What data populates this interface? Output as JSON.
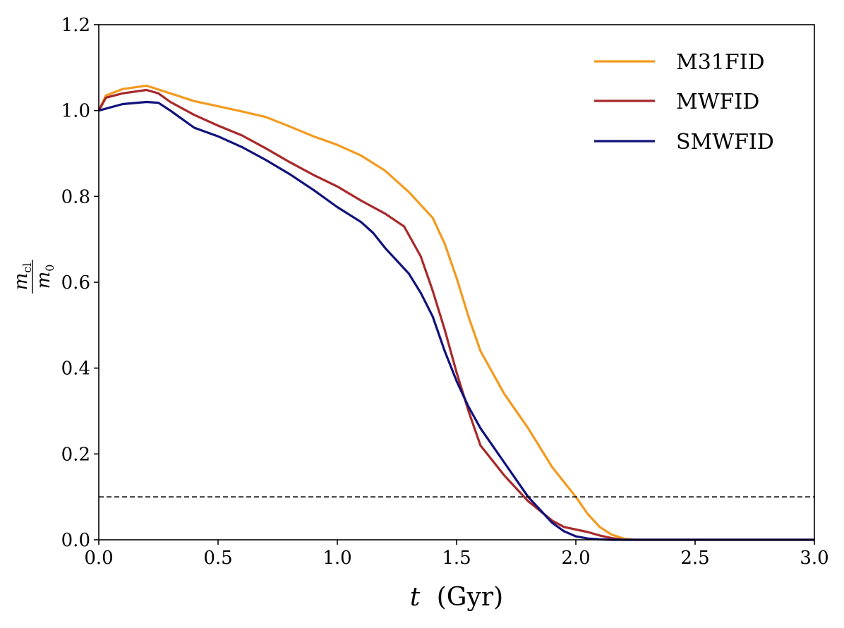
{
  "chart_data": {
    "type": "line",
    "title": "",
    "xlabel_var": "t",
    "xlabel_unit": "(Gyr)",
    "ylabel_num_main": "m",
    "ylabel_num_sub": "cl",
    "ylabel_den_main": "m",
    "ylabel_den_sub": "0",
    "xlim": [
      0.0,
      3.0
    ],
    "ylim": [
      0.0,
      1.2
    ],
    "xticks": [
      0.0,
      0.5,
      1.0,
      1.5,
      2.0,
      2.5,
      3.0
    ],
    "xtick_labels": [
      "0.0",
      "0.5",
      "1.0",
      "1.5",
      "2.0",
      "2.5",
      "3.0"
    ],
    "yticks": [
      0.0,
      0.2,
      0.4,
      0.6,
      0.8,
      1.0,
      1.2
    ],
    "ytick_labels": [
      "0.0",
      "0.2",
      "0.4",
      "0.6",
      "0.8",
      "1.0",
      "1.2"
    ],
    "grid": false,
    "legend_position": "top-right",
    "threshold": {
      "value": 0.1,
      "style": "dashed",
      "color": "#000000"
    },
    "series": [
      {
        "name": "M31FID",
        "color": "#F39A1F",
        "x": [
          0.0,
          0.03,
          0.1,
          0.2,
          0.3,
          0.4,
          0.5,
          0.6,
          0.7,
          0.8,
          0.9,
          1.0,
          1.1,
          1.2,
          1.3,
          1.4,
          1.45,
          1.5,
          1.55,
          1.6,
          1.7,
          1.8,
          1.9,
          2.0,
          2.05,
          2.1,
          2.15,
          2.2,
          2.25,
          3.0
        ],
        "y": [
          1.0,
          1.035,
          1.05,
          1.058,
          1.04,
          1.022,
          1.01,
          0.998,
          0.985,
          0.963,
          0.94,
          0.92,
          0.895,
          0.86,
          0.81,
          0.75,
          0.69,
          0.61,
          0.52,
          0.44,
          0.34,
          0.26,
          0.17,
          0.1,
          0.06,
          0.03,
          0.012,
          0.003,
          0.0,
          0.0
        ]
      },
      {
        "name": "MWFID",
        "color": "#A8292A",
        "x": [
          0.0,
          0.03,
          0.1,
          0.2,
          0.25,
          0.3,
          0.4,
          0.5,
          0.6,
          0.7,
          0.8,
          0.9,
          1.0,
          1.1,
          1.2,
          1.28,
          1.35,
          1.4,
          1.45,
          1.5,
          1.55,
          1.6,
          1.7,
          1.8,
          1.9,
          1.95,
          2.05,
          2.1,
          2.15,
          2.2,
          3.0
        ],
        "y": [
          1.0,
          1.03,
          1.04,
          1.048,
          1.04,
          1.02,
          0.99,
          0.965,
          0.942,
          0.912,
          0.88,
          0.85,
          0.823,
          0.79,
          0.76,
          0.73,
          0.66,
          0.58,
          0.49,
          0.39,
          0.3,
          0.22,
          0.15,
          0.09,
          0.045,
          0.03,
          0.018,
          0.01,
          0.004,
          0.0,
          0.0
        ]
      },
      {
        "name": "SMWFID",
        "color": "#11127A",
        "x": [
          0.0,
          0.1,
          0.2,
          0.25,
          0.3,
          0.4,
          0.5,
          0.6,
          0.7,
          0.8,
          0.9,
          1.0,
          1.1,
          1.15,
          1.2,
          1.3,
          1.35,
          1.4,
          1.45,
          1.5,
          1.55,
          1.6,
          1.65,
          1.7,
          1.75,
          1.8,
          1.85,
          1.9,
          1.95,
          2.0,
          2.05,
          2.1,
          2.15,
          3.0
        ],
        "y": [
          1.0,
          1.015,
          1.02,
          1.018,
          1.0,
          0.96,
          0.94,
          0.915,
          0.885,
          0.852,
          0.815,
          0.775,
          0.74,
          0.715,
          0.68,
          0.62,
          0.575,
          0.52,
          0.44,
          0.37,
          0.31,
          0.26,
          0.22,
          0.18,
          0.14,
          0.1,
          0.07,
          0.04,
          0.02,
          0.008,
          0.003,
          0.001,
          0.0,
          0.0
        ]
      }
    ]
  }
}
